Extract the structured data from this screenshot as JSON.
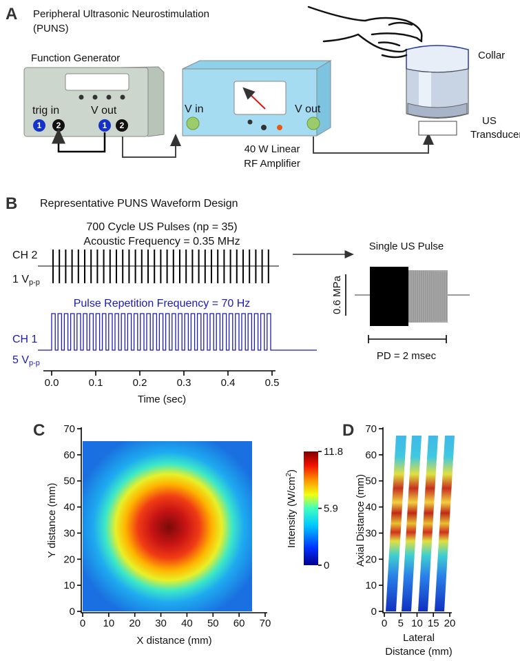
{
  "panel_a": {
    "label": "A",
    "title": "Peripheral Ultrasonic Neurostimulation",
    "title_cont": "(PUNS)",
    "function_generator": "Function Generator",
    "trig_in": "trig in",
    "fg_v_out": "V out",
    "port_1": "1",
    "port_2": "2",
    "amp_v_in": "V in",
    "amp_v_out": "V out",
    "amplifier": [
      "40 W Linear",
      "RF Amplifier"
    ],
    "collar": "Collar",
    "transducer": [
      "US",
      "Transducer"
    ]
  },
  "panel_b": {
    "label": "B",
    "title": "Representative PUNS Waveform Design",
    "pulses": "700 Cycle US Pulses (np = 35)",
    "acoustic": "Acoustic Frequency = 0.35 MHz",
    "ch2": "CH 2",
    "ch2_scale": "1 V",
    "ch2_scale_sub": "p-p",
    "prf": "Pulse Repetition Frequency = 70 Hz",
    "ch1": "CH 1",
    "ch1_scale": "5 V",
    "ch1_scale_sub": "p-p",
    "xticks": [
      "0.0",
      "0.1",
      "0.2",
      "0.3",
      "0.4",
      "0.5"
    ],
    "xlabel": "Time (sec)",
    "single_pulse": "Single US Pulse",
    "pressure_scale": "0.6 MPa",
    "pd": "PD = 2 msec"
  },
  "panel_c": {
    "label": "C",
    "xlabel": "X distance (mm)",
    "ylabel": "Y distance (mm)",
    "xticks": [
      0,
      10,
      20,
      30,
      40,
      50,
      60,
      70
    ],
    "yticks": [
      0,
      10,
      20,
      30,
      40,
      50,
      60,
      70
    ],
    "colorbar_label": "Intensity (W/cm",
    "colorbar_label_sup": "2",
    "colorbar_label_end": ")",
    "colorbar_ticks": [
      0,
      5.9,
      11.8
    ]
  },
  "panel_d": {
    "label": "D",
    "ylabel": "Axial Distance (mm)",
    "xlabel": [
      "Lateral",
      "Distance (mm)"
    ],
    "xticks": [
      0,
      5,
      10,
      15,
      20
    ],
    "yticks": [
      0,
      10,
      20,
      30,
      40,
      50,
      60,
      70
    ]
  }
}
